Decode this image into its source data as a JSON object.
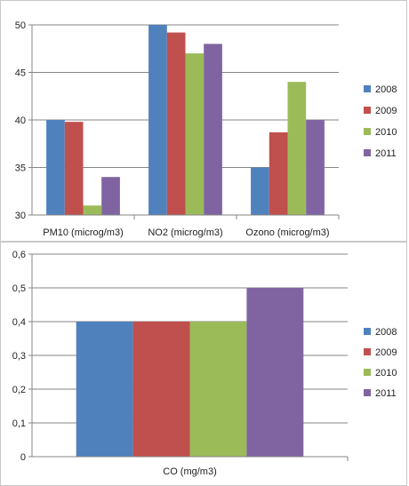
{
  "colors": {
    "2008": "#4f81bd",
    "2009": "#c0504d",
    "2010": "#9bbb59",
    "2011": "#8064a2",
    "axis": "#868686",
    "grid": "#868686"
  },
  "chart_data": [
    {
      "type": "bar",
      "title": "",
      "xlabel": "",
      "ylabel": "",
      "categories": [
        "PM10 (microg/m3)",
        "NO2 (microg/m3)",
        "Ozono (microg/m3)"
      ],
      "ylim": [
        30,
        50
      ],
      "yticks": [
        30,
        35,
        40,
        45,
        50
      ],
      "ytick_labels": [
        "30",
        "35",
        "40",
        "45",
        "50"
      ],
      "grid": true,
      "legend_position": "right",
      "series": [
        {
          "name": "2008",
          "values": [
            40,
            50,
            35
          ]
        },
        {
          "name": "2009",
          "values": [
            39.8,
            49.2,
            38.7
          ]
        },
        {
          "name": "2010",
          "values": [
            31,
            47,
            44
          ]
        },
        {
          "name": "2011",
          "values": [
            34,
            48,
            40
          ]
        }
      ]
    },
    {
      "type": "bar",
      "title": "",
      "xlabel": "",
      "ylabel": "",
      "categories": [
        "CO (mg/m3)"
      ],
      "ylim": [
        0,
        0.6
      ],
      "yticks": [
        0,
        0.1,
        0.2,
        0.3,
        0.4,
        0.5,
        0.6
      ],
      "ytick_labels": [
        "0",
        "0,1",
        "0,2",
        "0,3",
        "0,4",
        "0,5",
        "0,6"
      ],
      "grid": true,
      "legend_position": "right",
      "series": [
        {
          "name": "2008",
          "values": [
            0.4
          ]
        },
        {
          "name": "2009",
          "values": [
            0.4
          ]
        },
        {
          "name": "2010",
          "values": [
            0.4
          ]
        },
        {
          "name": "2011",
          "values": [
            0.5
          ]
        }
      ]
    }
  ]
}
